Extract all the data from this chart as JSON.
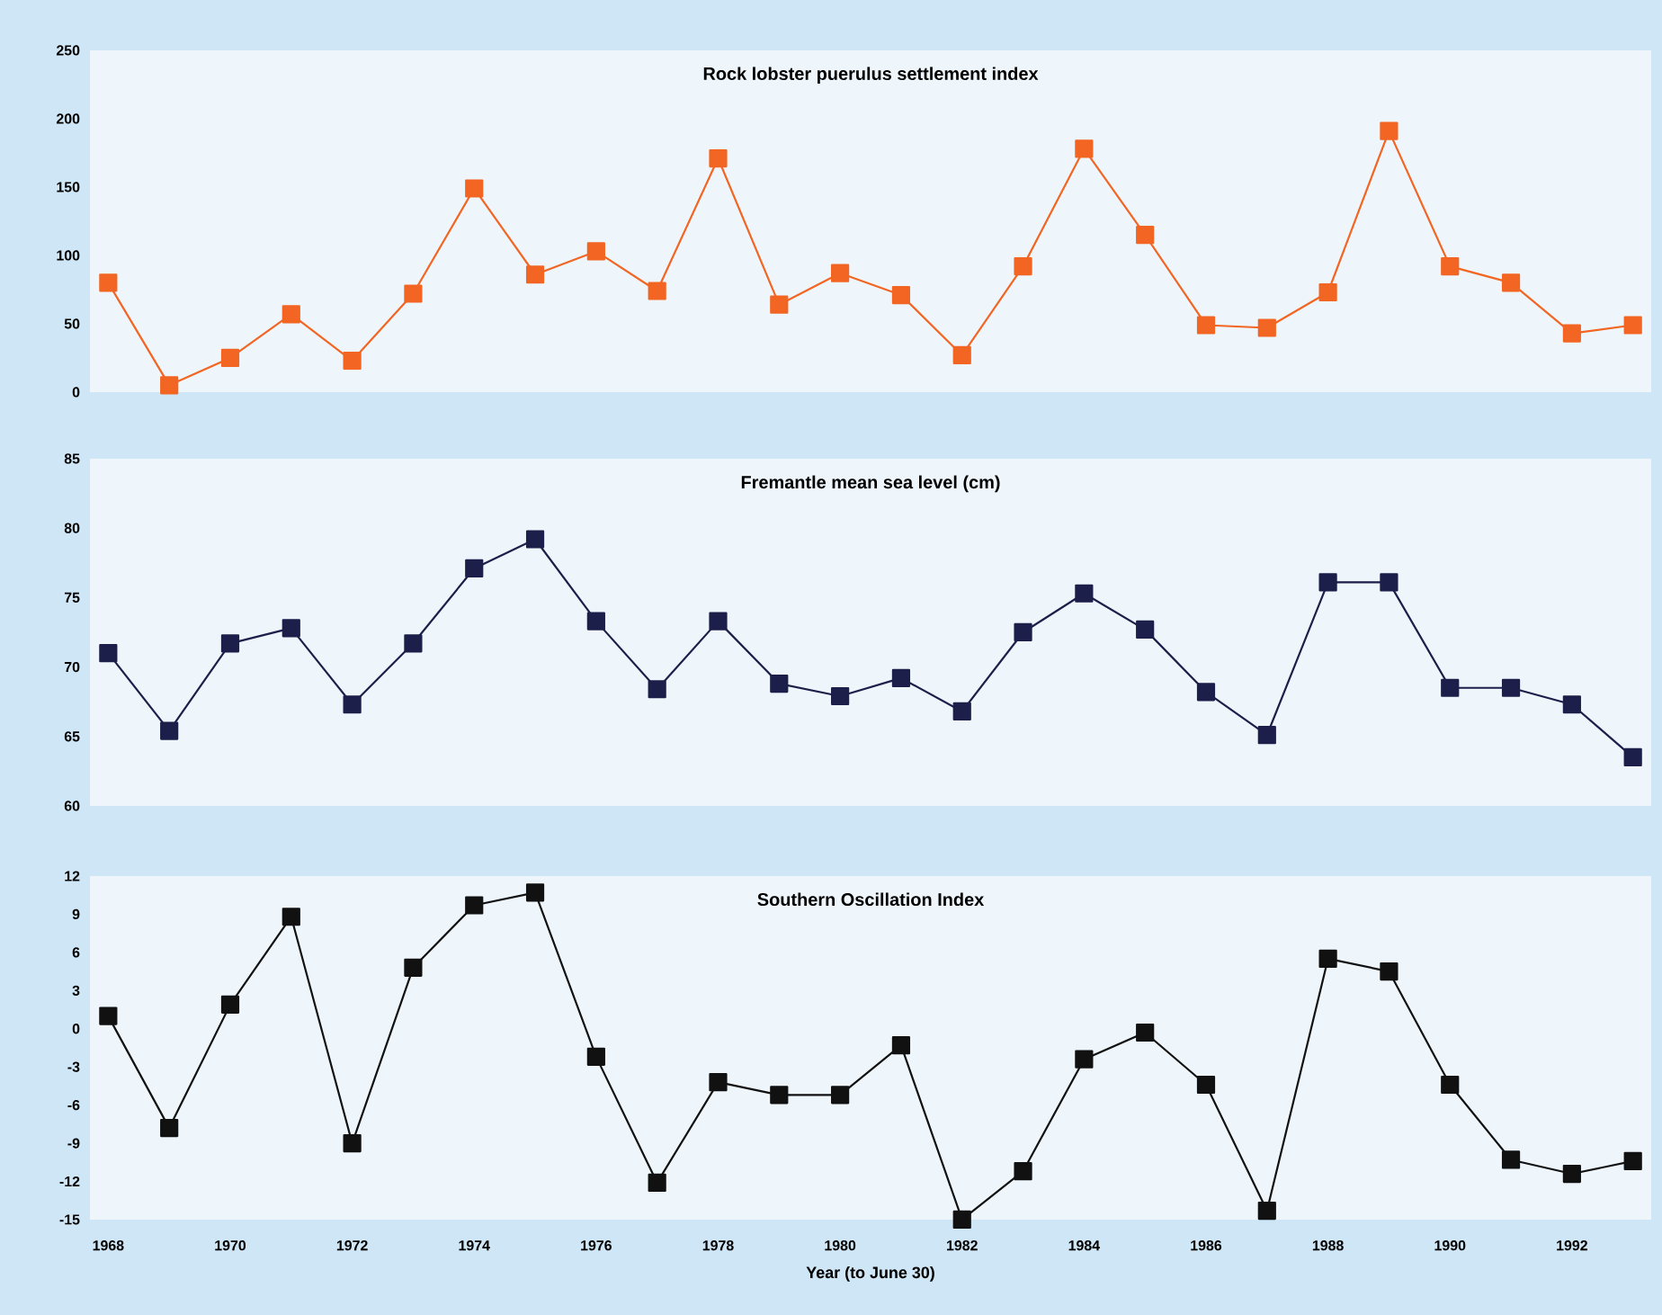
{
  "chart_data": [
    {
      "type": "line",
      "title": "Rock lobster puerulus settlement index",
      "x": [
        1968,
        1969,
        1970,
        1971,
        1972,
        1973,
        1974,
        1975,
        1976,
        1977,
        1978,
        1979,
        1980,
        1981,
        1982,
        1983,
        1984,
        1985,
        1986,
        1987,
        1988,
        1989,
        1990,
        1991,
        1992,
        1993
      ],
      "series": [
        {
          "color": "#f26522",
          "values": [
            80,
            5,
            25,
            57,
            23,
            72,
            149,
            86,
            103,
            74,
            171,
            64,
            87,
            71,
            27,
            92,
            178,
            115,
            49,
            47,
            73,
            191,
            92,
            80,
            43,
            49
          ]
        }
      ],
      "xlim": [
        1967.7,
        1993.3
      ],
      "ylim": [
        0,
        250
      ],
      "yticks": [
        0,
        50,
        100,
        150,
        200,
        250
      ],
      "tick_labels": "y",
      "marker": "square"
    },
    {
      "type": "line",
      "title": "Fremantle mean sea level (cm)",
      "x": [
        1968,
        1969,
        1970,
        1971,
        1972,
        1973,
        1974,
        1975,
        1976,
        1977,
        1978,
        1979,
        1980,
        1981,
        1982,
        1983,
        1984,
        1985,
        1986,
        1987,
        1988,
        1989,
        1990,
        1991,
        1992,
        1993
      ],
      "series": [
        {
          "color": "#1c1f4a",
          "values": [
            71.0,
            65.4,
            71.7,
            72.8,
            67.3,
            71.7,
            77.1,
            79.2,
            73.3,
            68.4,
            73.3,
            68.8,
            67.9,
            69.2,
            66.8,
            72.5,
            75.3,
            72.7,
            68.2,
            65.1,
            76.1,
            76.1,
            68.5,
            68.5,
            67.3,
            63.5
          ]
        }
      ],
      "xlim": [
        1967.7,
        1993.3
      ],
      "ylim": [
        60,
        85
      ],
      "yticks": [
        60,
        65,
        70,
        75,
        80,
        85
      ],
      "tick_labels": "y",
      "marker": "square"
    },
    {
      "type": "line",
      "title": "Southern Oscillation Index",
      "xlabel": "Year (to June  30)",
      "x": [
        1968,
        1969,
        1970,
        1971,
        1972,
        1973,
        1974,
        1975,
        1976,
        1977,
        1978,
        1979,
        1980,
        1981,
        1982,
        1983,
        1984,
        1985,
        1986,
        1987,
        1988,
        1989,
        1990,
        1991,
        1992,
        1993
      ],
      "series": [
        {
          "color": "#111111",
          "values": [
            1.0,
            -7.8,
            1.9,
            8.8,
            -9.0,
            4.8,
            9.7,
            10.7,
            -2.2,
            -12.1,
            -4.2,
            -5.2,
            -5.2,
            -1.3,
            -15,
            -11.2,
            -2.4,
            -0.3,
            -4.4,
            -14.3,
            5.5,
            4.5,
            -4.4,
            -10.3,
            -11.4,
            -10.4
          ]
        }
      ],
      "xlim": [
        1967.7,
        1993.3
      ],
      "xticks": [
        1968,
        1970,
        1972,
        1974,
        1976,
        1978,
        1980,
        1982,
        1984,
        1986,
        1988,
        1990,
        1992
      ],
      "ylim": [
        -15,
        12
      ],
      "yticks": [
        -15,
        -12,
        -9,
        -6,
        -3,
        0,
        3,
        6,
        9,
        12
      ],
      "marker": "square"
    }
  ]
}
